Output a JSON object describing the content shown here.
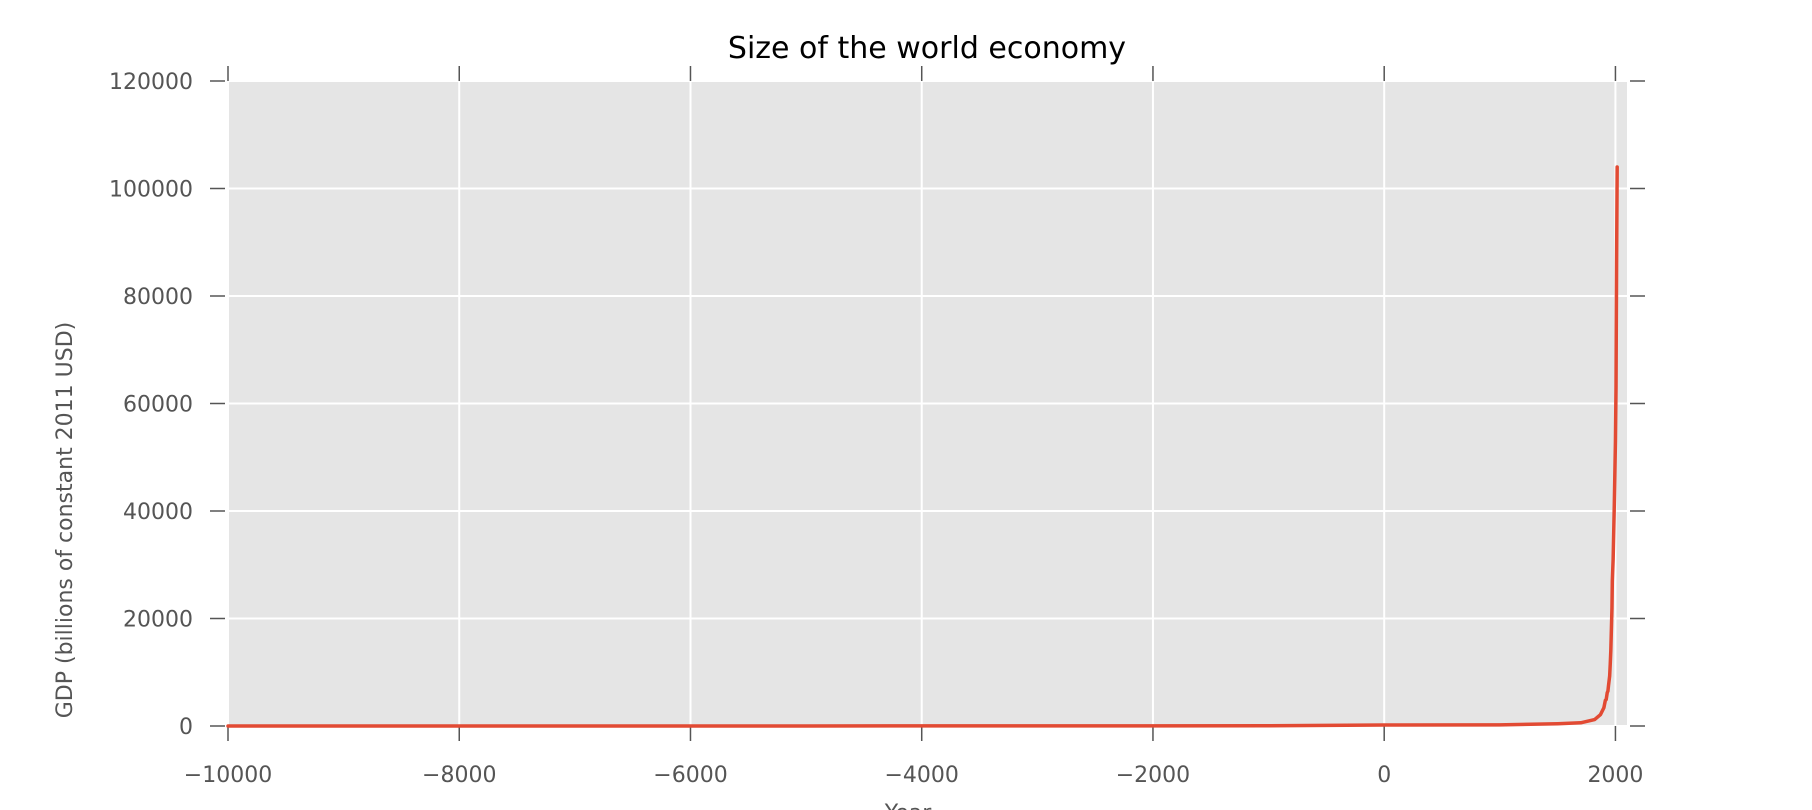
{
  "chart_data": {
    "type": "line",
    "title": "Size of the world economy",
    "xlabel": "Year",
    "ylabel": "GDP (billions of constant 2011 USD)",
    "xlim": [
      -10000,
      2100
    ],
    "ylim": [
      0,
      120000
    ],
    "xticks": [
      -10000,
      -8000,
      -6000,
      -4000,
      -2000,
      0,
      2000
    ],
    "xtick_labels": [
      "−10000",
      "−8000",
      "−6000",
      "−4000",
      "−2000",
      "0",
      "2000"
    ],
    "yticks": [
      0,
      20000,
      40000,
      60000,
      80000,
      100000,
      120000
    ],
    "ytick_labels": [
      "0",
      "20000",
      "40000",
      "60000",
      "80000",
      "100000",
      "120000"
    ],
    "grid": true,
    "background": "#e5e5e5",
    "line_color": "#e24a33",
    "series": [
      {
        "x": [
          -10000,
          -5000,
          -1000,
          0,
          1000,
          1500,
          1700,
          1820,
          1870,
          1900,
          1913,
          1920,
          1929,
          1935,
          1940,
          1950,
          1955,
          1960,
          1970,
          1973,
          1980,
          1990,
          2000,
          2005,
          2010,
          2015
        ],
        "values": [
          2,
          8,
          40,
          180,
          210,
          430,
          600,
          1200,
          2100,
          3400,
          4800,
          4900,
          6200,
          6500,
          7500,
          9300,
          11500,
          14000,
          22000,
          27000,
          31000,
          41000,
          53000,
          63000,
          86000,
          104000
        ]
      }
    ]
  }
}
